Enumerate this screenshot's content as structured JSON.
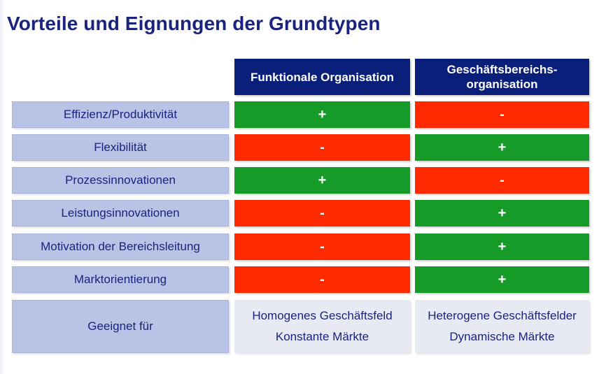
{
  "title": "Vorteile und Eignungen der Grundtypen",
  "columns": [
    "Funktionale Organisation",
    "Geschäftsbereichs-\norganisation"
  ],
  "rows": [
    {
      "label": "Effizienz/Produktivität",
      "values": [
        "+",
        "-"
      ]
    },
    {
      "label": "Flexibilität",
      "values": [
        "-",
        "+"
      ]
    },
    {
      "label": "Prozessinnovationen",
      "values": [
        "+",
        "-"
      ]
    },
    {
      "label": "Leistungsinnovationen",
      "values": [
        "-",
        "+"
      ]
    },
    {
      "label": "Motivation der Bereichsleitung",
      "values": [
        "-",
        "+"
      ]
    },
    {
      "label": "Marktorientierung",
      "values": [
        "-",
        "+"
      ]
    }
  ],
  "suitability": {
    "label": "Geeignet für",
    "functional": [
      "Homogenes Geschäftsfeld",
      "Konstante Märkte"
    ],
    "divisional": [
      "Heterogene Geschäftsfelder",
      "Dynamische Märkte"
    ]
  },
  "colors": {
    "plus": "#169b28",
    "minus": "#ff2a00",
    "header": "#0a1f7a",
    "label_bg": "#b9c3e6"
  }
}
